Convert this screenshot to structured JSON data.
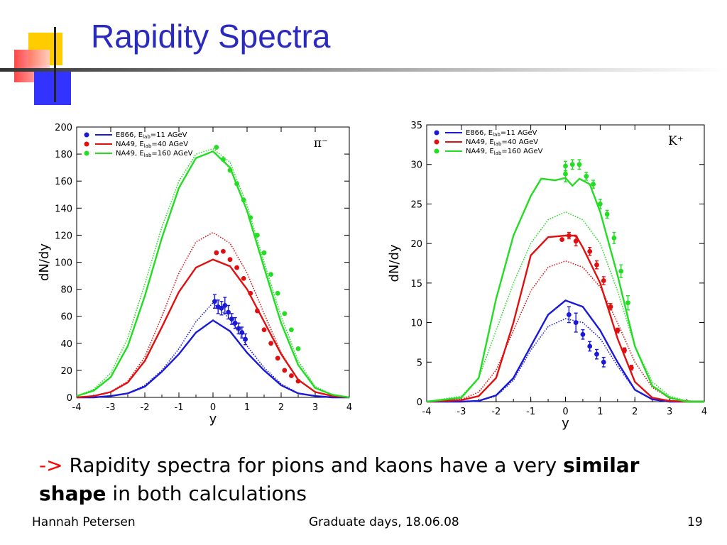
{
  "slide": {
    "title": "Rapidity Spectra",
    "bullet": {
      "arrow": "->",
      "text1": " Rapidity spectra for pions and kaons have a very ",
      "bold1": "similar",
      "bold2": "shape",
      "text2": " in both calculations"
    },
    "footer": {
      "left": "Hannah Petersen",
      "center": "Graduate days, 18.06.08",
      "right": "19"
    }
  },
  "colors": {
    "title": "#2a2abf",
    "blue": "#1a1ad6",
    "red": "#e01010",
    "green": "#22dd22",
    "arrow": "#ff0000"
  },
  "chart_data": [
    {
      "type": "line",
      "particle": "π⁻",
      "ylabel": "dN/dy",
      "xlabel": "y",
      "xlim": [
        -4,
        4
      ],
      "ylim": [
        0,
        200
      ],
      "xticks": [
        -4,
        -3,
        -2,
        -1,
        0,
        1,
        2,
        3,
        4
      ],
      "yticks": [
        0,
        20,
        40,
        60,
        80,
        100,
        120,
        140,
        160,
        180,
        200
      ],
      "legend_position": "top-left",
      "series": [
        {
          "name": "E866, E_lab=11 AGeV",
          "sub": "lab",
          "prefix": "E866, E",
          "suffix": "=11 AGeV",
          "color": "#1a1ad6",
          "solid": {
            "x": [
              -4,
              -3.5,
              -3,
              -2.5,
              -2,
              -1.5,
              -1,
              -0.5,
              0,
              0.5,
              1,
              1.5,
              2,
              2.5,
              3,
              3.5,
              4
            ],
            "y": [
              0,
              0,
              1,
              3,
              8,
              19,
              32,
              48,
              57,
              49,
              33,
              20,
              9,
              3,
              1,
              0,
              0
            ]
          },
          "dotted": {
            "x": [
              -4,
              -3.5,
              -3,
              -2.5,
              -2,
              -1.5,
              -1,
              -0.5,
              0,
              0.5,
              1,
              1.5,
              2,
              2.5,
              3,
              3.5,
              4
            ],
            "y": [
              0,
              0,
              1,
              3,
              9,
              20,
              36,
              56,
              70,
              58,
              38,
              22,
              10,
              3,
              1,
              0,
              0
            ]
          },
          "points": {
            "x": [
              0.05,
              0.15,
              0.25,
              0.35,
              0.45,
              0.55,
              0.65,
              0.75,
              0.85,
              0.95
            ],
            "y": [
              71,
              67,
              66,
              68,
              63,
              58,
              55,
              51,
              48,
              43
            ],
            "err": [
              5,
              5,
              5,
              6,
              5,
              4,
              4,
              4,
              4,
              4
            ]
          }
        },
        {
          "name": "NA49, E_lab=40 AGeV",
          "sub": "lab",
          "prefix": "NA49, E",
          "suffix": "=40 AGeV",
          "color": "#e01010",
          "solid": {
            "x": [
              -4,
              -3.5,
              -3,
              -2.5,
              -2,
              -1.5,
              -1,
              -0.5,
              0,
              0.5,
              1,
              1.5,
              2,
              2.5,
              3,
              3.5,
              4
            ],
            "y": [
              0,
              1,
              4,
              11,
              27,
              52,
              78,
              96,
              102,
              97,
              80,
              56,
              32,
              13,
              4,
              1,
              0
            ]
          },
          "dotted": {
            "x": [
              -4,
              -3.5,
              -3,
              -2.5,
              -2,
              -1.5,
              -1,
              -0.5,
              0,
              0.5,
              1,
              1.5,
              2,
              2.5,
              3,
              3.5,
              4
            ],
            "y": [
              0,
              1,
              4,
              12,
              30,
              60,
              92,
              115,
              122,
              114,
              92,
              62,
              33,
              13,
              4,
              1,
              0
            ]
          },
          "points": {
            "x": [
              0.1,
              0.3,
              0.5,
              0.7,
              0.9,
              1.1,
              1.3,
              1.5,
              1.7,
              1.9,
              2.1,
              2.3,
              2.5
            ],
            "y": [
              107,
              108,
              102,
              96,
              88,
              77,
              64,
              50,
              40,
              29,
              20,
              16,
              12
            ],
            "err": []
          }
        },
        {
          "name": "NA49, E_lab=160 AGeV",
          "sub": "lab",
          "prefix": "NA49, E",
          "suffix": "=160 AGeV",
          "color": "#22dd22",
          "solid": {
            "x": [
              -4,
              -3.5,
              -3,
              -2.5,
              -2,
              -1.5,
              -1,
              -0.5,
              0,
              0.5,
              1,
              1.5,
              2,
              2.5,
              3,
              3.5,
              4
            ],
            "y": [
              1,
              5,
              15,
              38,
              75,
              118,
              155,
              177,
              182,
              170,
              138,
              96,
              55,
              24,
              7,
              2,
              0
            ]
          },
          "dotted": {
            "x": [
              -4,
              -3.5,
              -3,
              -2.5,
              -2,
              -1.5,
              -1,
              -0.5,
              0,
              0.5,
              1,
              1.5,
              2,
              2.5,
              3,
              3.5,
              4
            ],
            "y": [
              1,
              6,
              18,
              44,
              84,
              126,
              160,
              180,
              184,
              174,
              142,
              100,
              60,
              27,
              8,
              2,
              0
            ]
          },
          "points": {
            "x": [
              0.1,
              0.3,
              0.5,
              0.7,
              0.9,
              1.1,
              1.3,
              1.5,
              1.7,
              1.9,
              2.1,
              2.3,
              2.5
            ],
            "y": [
              185,
              176,
              168,
              158,
              146,
              133,
              120,
              107,
              91,
              77,
              62,
              50,
              36
            ],
            "err": []
          }
        }
      ]
    },
    {
      "type": "line",
      "particle": "K⁺",
      "ylabel": "dN/dy",
      "xlabel": "y",
      "xlim": [
        -4,
        4
      ],
      "ylim": [
        0,
        35
      ],
      "xticks": [
        -4,
        -3,
        -2,
        -1,
        0,
        1,
        2,
        3,
        4
      ],
      "yticks": [
        0,
        5,
        10,
        15,
        20,
        25,
        30,
        35
      ],
      "legend_position": "top-left",
      "series": [
        {
          "name": "E866, E_lab=11 AGeV",
          "sub": "lab",
          "prefix": "E866, E",
          "suffix": "=11 AGeV",
          "color": "#1a1ad6",
          "solid": {
            "x": [
              -4,
              -3,
              -2.5,
              -2,
              -1.5,
              -1,
              -0.5,
              0,
              0.5,
              1,
              1.5,
              2,
              2.5,
              3,
              4
            ],
            "y": [
              0,
              0,
              0.1,
              0.8,
              3,
              7,
              11,
              12.8,
              12,
              9,
              5,
              1.5,
              0.3,
              0,
              0
            ]
          },
          "dotted": {
            "x": [
              -4,
              -3,
              -2.5,
              -2,
              -1.5,
              -1,
              -0.5,
              0,
              0.5,
              1,
              1.5,
              2,
              2.5,
              3,
              4
            ],
            "y": [
              0,
              0,
              0.1,
              0.7,
              2.7,
              6.5,
              9.5,
              10.5,
              10,
              8,
              4.5,
              1.5,
              0.3,
              0,
              0
            ]
          },
          "points": {
            "x": [
              0.1,
              0.3,
              0.5,
              0.7,
              0.9,
              1.1
            ],
            "y": [
              11,
              10,
              8.5,
              7,
              6,
              5
            ],
            "err": [
              1,
              1.2,
              0.6,
              0.6,
              0.6,
              0.6
            ]
          }
        },
        {
          "name": "NA49, E_lab=40 AGeV",
          "sub": "lab",
          "prefix": "NA49, E",
          "suffix": "=40 AGeV",
          "color": "#e01010",
          "solid": {
            "x": [
              -4,
              -3,
              -2.5,
              -2,
              -1.5,
              -1,
              -0.5,
              0,
              0.3,
              0.5,
              1,
              1.5,
              2,
              2.5,
              3,
              3.5,
              4
            ],
            "y": [
              0,
              0.2,
              0.7,
              3,
              10,
              18.5,
              20.8,
              21,
              21,
              19.5,
              15,
              8,
              2.5,
              0.5,
              0.1,
              0,
              0
            ]
          },
          "dotted": {
            "x": [
              -4,
              -3,
              -2.5,
              -2,
              -1.5,
              -1,
              -0.5,
              0,
              0.5,
              1,
              1.5,
              2,
              2.5,
              3,
              3.5,
              4
            ],
            "y": [
              0,
              0.3,
              1.2,
              4,
              9,
              14,
              17,
              17.8,
              17,
              14.5,
              10,
              5,
              1.8,
              0.4,
              0.1,
              0
            ]
          },
          "points": {
            "x": [
              -0.1,
              0.1,
              0.3,
              0.7,
              0.9,
              1.1,
              1.3,
              1.5,
              1.7,
              1.9
            ],
            "y": [
              20.5,
              21,
              20.3,
              19,
              17.3,
              15.3,
              12,
              9,
              6.5,
              4.3
            ],
            "err": [
              0,
              0.4,
              0.6,
              0.5,
              0.5,
              0.5,
              0.4,
              0.3,
              0.3,
              0.3
            ]
          }
        },
        {
          "name": "NA49, E_lab=160 AGeV",
          "sub": "lab",
          "prefix": "NA49, E",
          "suffix": "=160 AGeV",
          "color": "#22dd22",
          "solid": {
            "x": [
              -4,
              -3,
              -2.5,
              -2,
              -1.5,
              -1,
              -0.7,
              -0.3,
              0,
              0.2,
              0.4,
              0.7,
              1,
              1.5,
              2,
              2.5,
              3,
              3.5,
              4
            ],
            "y": [
              0,
              0.5,
              3,
              13,
              21,
              26,
              28.2,
              28,
              28.3,
              27.3,
              28.2,
              27.5,
              24,
              16,
              7,
              2,
              0.5,
              0,
              0
            ]
          },
          "dotted": {
            "x": [
              -4,
              -3,
              -2.5,
              -2,
              -1.5,
              -1,
              -0.5,
              0,
              0.5,
              1,
              1.5,
              2,
              2.5,
              3,
              3.5,
              4
            ],
            "y": [
              0,
              0.7,
              3,
              9,
              15,
              20,
              23,
              24,
              23,
              20,
              14,
              7,
              2.5,
              0.7,
              0.1,
              0
            ]
          },
          "points": {
            "x": [
              0.0,
              0.0,
              0.2,
              0.4,
              0.6,
              0.8,
              1.0,
              1.2,
              1.4,
              1.6,
              1.8
            ],
            "y": [
              28.8,
              29.8,
              30,
              30,
              28.5,
              27.5,
              25,
              23.7,
              20.7,
              16.5,
              12.5
            ],
            "err": [
              1,
              0.6,
              0.6,
              0.6,
              0.5,
              0.5,
              0.6,
              0.5,
              0.7,
              0.8,
              0.9
            ]
          }
        }
      ]
    }
  ]
}
